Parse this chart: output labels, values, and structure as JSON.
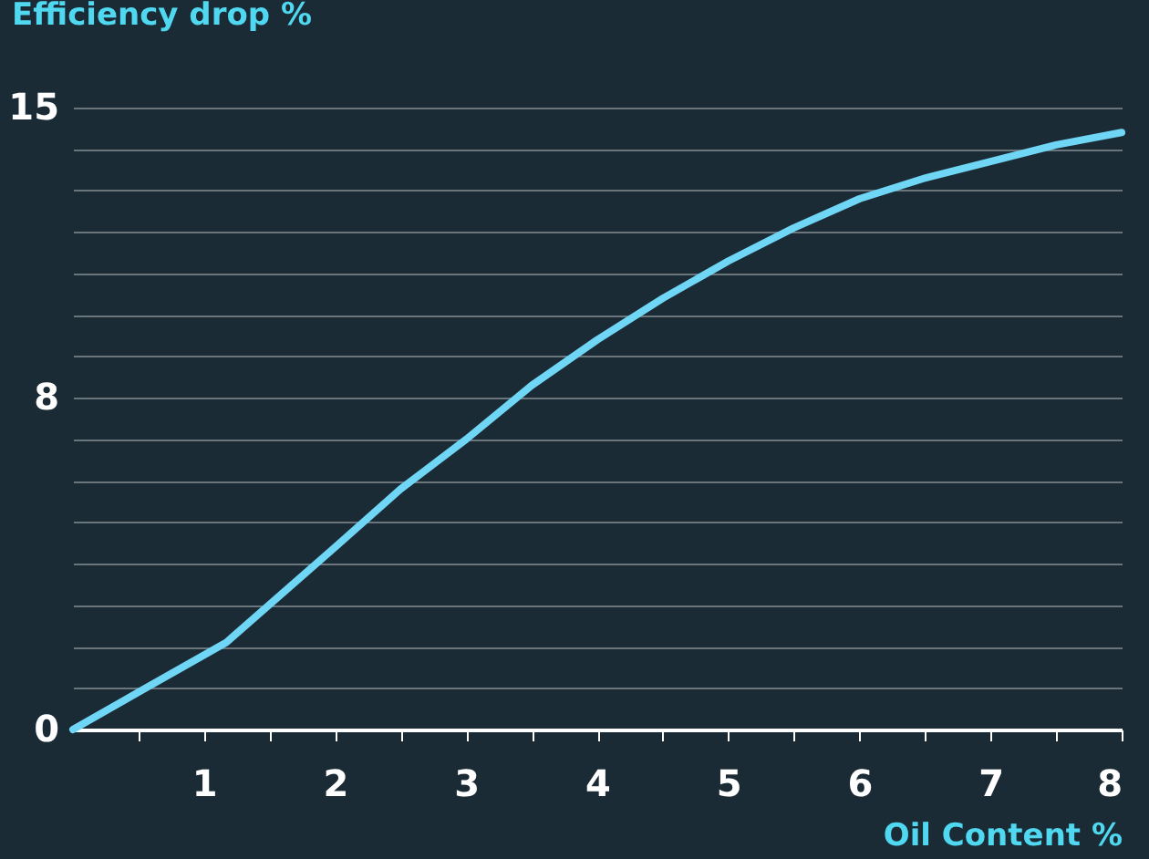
{
  "chart_data": {
    "type": "line",
    "xlabel": "Oil Content %",
    "ylabel": "Efficiency drop %",
    "x": [
      0,
      0.5,
      1.17,
      2,
      2.5,
      3,
      3.5,
      4,
      4.5,
      5,
      5.5,
      6,
      6.5,
      7,
      7.5,
      8
    ],
    "series": [
      {
        "color": "#6fd6f5",
        "values": [
          0,
          0.9,
          2.1,
          4.4,
          5.8,
          7.0,
          8.3,
          9.4,
          10.4,
          11.3,
          12.1,
          12.8,
          13.3,
          13.7,
          14.1,
          14.4
        ]
      }
    ],
    "xlim": [
      0,
      8
    ],
    "xticks": [
      {
        "value": 0.5,
        "label": null
      },
      1,
      {
        "value": 1.5,
        "label": null
      },
      2,
      {
        "value": 2.5,
        "label": null
      },
      3,
      {
        "value": 3.5,
        "label": null
      },
      4,
      {
        "value": 4.5,
        "label": null
      },
      5,
      {
        "value": 5.5,
        "label": null
      },
      6,
      {
        "value": 6.5,
        "label": null
      },
      7,
      {
        "value": 7.5,
        "label": null
      },
      8
    ],
    "ylim": [
      0,
      15
    ],
    "yticks": [
      0,
      {
        "value": 1,
        "label": null
      },
      {
        "value": 2,
        "label": null
      },
      {
        "value": 3,
        "label": null
      },
      {
        "value": 4,
        "label": null
      },
      {
        "value": 5,
        "label": null
      },
      {
        "value": 6,
        "label": null
      },
      {
        "value": 7,
        "label": null
      },
      8,
      {
        "value": 9,
        "label": null
      },
      {
        "value": 10,
        "label": null
      },
      {
        "value": 11,
        "label": null
      },
      {
        "value": 12,
        "label": null
      },
      {
        "value": 13,
        "label": null
      },
      {
        "value": 14,
        "label": null
      },
      15
    ],
    "grid": "y",
    "marker": "none",
    "line_style": "solid"
  }
}
